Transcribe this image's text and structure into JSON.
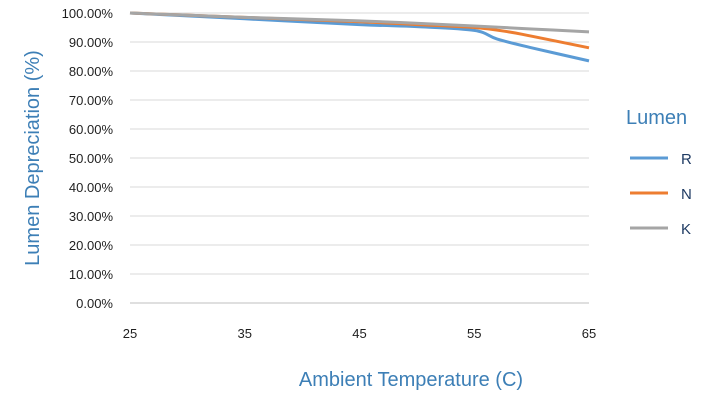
{
  "chart_data": {
    "type": "line",
    "xlabel": "Ambient Temperature (C)",
    "ylabel": "Lumen Depreciation (%)",
    "xlim": [
      25,
      65
    ],
    "ylim": [
      0,
      100
    ],
    "x_ticks": [
      "25",
      "35",
      "45",
      "55",
      "65"
    ],
    "y_ticks": [
      "0.00%",
      "10.00%",
      "20.00%",
      "30.00%",
      "40.00%",
      "50.00%",
      "60.00%",
      "70.00%",
      "80.00%",
      "90.00%",
      "100.00%"
    ],
    "grid": "horizontal",
    "legend": {
      "title": "Lumen",
      "placement": "right"
    },
    "series": [
      {
        "name": "R",
        "color": "#5b9bd5",
        "points": [
          [
            25,
            100
          ],
          [
            35,
            98
          ],
          [
            45,
            96
          ],
          [
            50,
            95.3
          ],
          [
            55,
            94
          ],
          [
            57,
            91
          ],
          [
            60,
            88
          ],
          [
            65,
            83.5
          ]
        ]
      },
      {
        "name": "N",
        "color": "#ed7d31",
        "points": [
          [
            25,
            100
          ],
          [
            35,
            98.5
          ],
          [
            45,
            97
          ],
          [
            50,
            96
          ],
          [
            55,
            95
          ],
          [
            58,
            93.5
          ],
          [
            60,
            92
          ],
          [
            65,
            88
          ]
        ]
      },
      {
        "name": "K",
        "color": "#a5a5a5",
        "points": [
          [
            25,
            100
          ],
          [
            35,
            98.5
          ],
          [
            45,
            97.3
          ],
          [
            55,
            95.5
          ],
          [
            60,
            94.5
          ],
          [
            65,
            93.5
          ]
        ]
      }
    ]
  }
}
